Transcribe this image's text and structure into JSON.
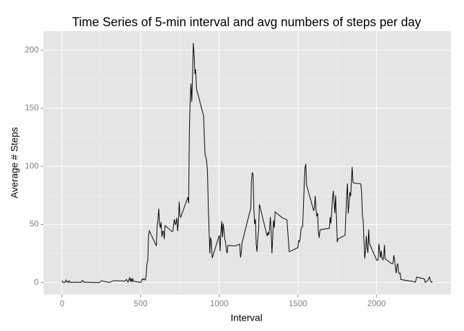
{
  "chart_data": {
    "type": "line",
    "title": "Time Series of 5-min interval and avg numbers of steps per day",
    "x_label": "Interval",
    "y_label": "Average # Steps",
    "xlim": [
      -117.75,
      2472.75
    ],
    "ylim": [
      -10.3,
      216.5
    ],
    "xticks": [
      0,
      500,
      1000,
      1500,
      2000
    ],
    "yticks": [
      0,
      50,
      100,
      150,
      200
    ],
    "grid": true,
    "series": [
      {
        "color": "#000000",
        "x": [
          0,
          5,
          10,
          15,
          20,
          25,
          30,
          35,
          40,
          45,
          50,
          55,
          100,
          110,
          120,
          125,
          130,
          140,
          150,
          200,
          230,
          240,
          250,
          300,
          330,
          400,
          410,
          420,
          430,
          435,
          440,
          445,
          450,
          455,
          500,
          510,
          515,
          520,
          530,
          535,
          540,
          545,
          550,
          555,
          600,
          605,
          610,
          615,
          620,
          625,
          630,
          635,
          640,
          645,
          650,
          655,
          700,
          705,
          710,
          715,
          720,
          725,
          730,
          735,
          740,
          745,
          750,
          755,
          800,
          805,
          810,
          815,
          820,
          825,
          830,
          835,
          840,
          845,
          850,
          855,
          900,
          905,
          910,
          915,
          920,
          925,
          930,
          935,
          940,
          945,
          950,
          955,
          1000,
          1005,
          1010,
          1015,
          1020,
          1025,
          1030,
          1035,
          1040,
          1045,
          1050,
          1055,
          1100,
          1130,
          1135,
          1140,
          1145,
          1200,
          1205,
          1210,
          1215,
          1220,
          1225,
          1230,
          1235,
          1240,
          1245,
          1250,
          1255,
          1300,
          1305,
          1310,
          1315,
          1320,
          1325,
          1330,
          1335,
          1340,
          1345,
          1350,
          1355,
          1400,
          1430,
          1445,
          1500,
          1505,
          1510,
          1515,
          1520,
          1525,
          1530,
          1535,
          1540,
          1545,
          1550,
          1555,
          1600,
          1605,
          1610,
          1615,
          1620,
          1625,
          1630,
          1635,
          1640,
          1645,
          1700,
          1705,
          1710,
          1715,
          1720,
          1725,
          1730,
          1735,
          1740,
          1745,
          1750,
          1755,
          1800,
          1805,
          1810,
          1815,
          1820,
          1825,
          1830,
          1835,
          1840,
          1845,
          1850,
          1855,
          1900,
          1905,
          1910,
          1915,
          1920,
          1925,
          1930,
          1935,
          1940,
          1945,
          1950,
          1955,
          2000,
          2005,
          2010,
          2015,
          2020,
          2025,
          2030,
          2035,
          2040,
          2045,
          2050,
          2055,
          2100,
          2105,
          2110,
          2115,
          2120,
          2125,
          2130,
          2135,
          2140,
          2145,
          2150,
          2155,
          2200,
          2230,
          2245,
          2250,
          2255,
          2300,
          2305,
          2310,
          2315,
          2320,
          2325,
          2330,
          2335,
          2340,
          2345,
          2350,
          2355
        ],
        "values": [
          1.7,
          0.3,
          0.1,
          0.2,
          0.1,
          2.1,
          0.5,
          0.9,
          0,
          1.5,
          0.3,
          0.1,
          0.3,
          0.2,
          0,
          1.1,
          1.8,
          0.2,
          0.3,
          0,
          0,
          0,
          1.5,
          0,
          1.6,
          1.2,
          2.6,
          0.3,
          4.1,
          0.7,
          3.5,
          0.8,
          3.1,
          1.1,
          0,
          3,
          2.2,
          3.3,
          2.1,
          6.1,
          16,
          18.3,
          39.5,
          44.5,
          31.5,
          49.3,
          53.8,
          63.5,
          50,
          47,
          52,
          39.3,
          44,
          44.2,
          37.4,
          49,
          43.8,
          44.4,
          50.5,
          54.5,
          49.9,
          50.9,
          55.7,
          44.3,
          52.3,
          69.5,
          57.8,
          56.2,
          73.4,
          68.2,
          129.4,
          157.5,
          171.2,
          155.4,
          177.3,
          206.2,
          195.9,
          179.6,
          183.4,
          167,
          143.5,
          124,
          109.1,
          108.1,
          103.7,
          95.9,
          66.2,
          45.2,
          24.8,
          38.8,
          35,
          21.1,
          40.6,
          27,
          42.4,
          52.7,
          38.9,
          50.8,
          44.3,
          37.4,
          34.7,
          28.3,
          25.1,
          31.9,
          31.4,
          33,
          21.5,
          26,
          34.4,
          63.9,
          87.5,
          94.8,
          92.8,
          63.4,
          50.2,
          54.5,
          32.4,
          26.5,
          37.7,
          45.1,
          67.3,
          42.3,
          39.9,
          43.3,
          40.9,
          46.2,
          56.4,
          42.8,
          25.1,
          39.9,
          53.5,
          47.3,
          60.8,
          55.8,
          54,
          26.5,
          30,
          36,
          35.1,
          38.8,
          45.9,
          47.8,
          48.1,
          65.3,
          82.9,
          98.7,
          102.1,
          83.9,
          62.1,
          64.1,
          74.5,
          63.2,
          56.9,
          59.8,
          43.9,
          38.6,
          44.7,
          45.5,
          46.6,
          56.3,
          50.7,
          61.2,
          72.7,
          78.9,
          68.9,
          59.7,
          75.1,
          56.5,
          34.8,
          37.5,
          40.7,
          58,
          74.7,
          85.3,
          59.3,
          67.8,
          77.7,
          74.2,
          85.3,
          99.5,
          86.6,
          85.6,
          84.9,
          77.8,
          58,
          53.4,
          36.3,
          20.7,
          27.4,
          40,
          30.2,
          25.5,
          45.7,
          33.5,
          19.6,
          19,
          19.3,
          33.3,
          26.8,
          21.2,
          27.3,
          21.3,
          19.5,
          21.3,
          32.3,
          20.2,
          15.9,
          17.2,
          23.5,
          19.2,
          12.5,
          8,
          14.7,
          16.3,
          8.7,
          7.8,
          8.1,
          2.6,
          1.5,
          1,
          0.2,
          1.6,
          4.6,
          3.3,
          2.8,
          0,
          0.8,
          1,
          1.6,
          2.6,
          4.7,
          3.3,
          0.6,
          0.2,
          1.1
        ]
      }
    ]
  }
}
